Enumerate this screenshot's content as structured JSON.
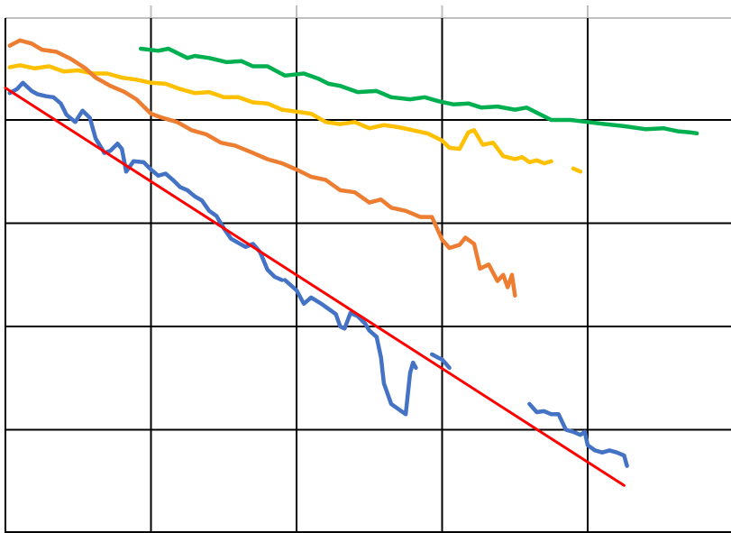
{
  "chart_data": {
    "type": "line",
    "title": "",
    "xlabel": "",
    "ylabel": "",
    "xlim": [
      0,
      5
    ],
    "ylim": [
      0,
      5
    ],
    "grid": true,
    "legend": "none",
    "series": [
      {
        "color": "#00B050",
        "points": [
          [
            0.93,
            4.69
          ],
          [
            1.05,
            4.67
          ],
          [
            1.12,
            4.69
          ],
          [
            1.25,
            4.6
          ],
          [
            1.3,
            4.62
          ],
          [
            1.4,
            4.6
          ],
          [
            1.52,
            4.56
          ],
          [
            1.62,
            4.57
          ],
          [
            1.7,
            4.52
          ],
          [
            1.8,
            4.52
          ],
          [
            1.92,
            4.43
          ],
          [
            2.05,
            4.45
          ],
          [
            2.15,
            4.4
          ],
          [
            2.22,
            4.35
          ],
          [
            2.3,
            4.33
          ],
          [
            2.42,
            4.27
          ],
          [
            2.55,
            4.28
          ],
          [
            2.65,
            4.22
          ],
          [
            2.78,
            4.2
          ],
          [
            2.88,
            4.22
          ],
          [
            2.98,
            4.18
          ],
          [
            3.08,
            4.15
          ],
          [
            3.18,
            4.16
          ],
          [
            3.27,
            4.12
          ],
          [
            3.38,
            4.13
          ],
          [
            3.5,
            4.1
          ],
          [
            3.58,
            4.12
          ],
          [
            3.75,
            4.0
          ],
          [
            3.88,
            4.0
          ],
          [
            4.0,
            3.98
          ],
          [
            4.12,
            3.96
          ],
          [
            4.25,
            3.94
          ],
          [
            4.4,
            3.91
          ],
          [
            4.52,
            3.92
          ],
          [
            4.62,
            3.89
          ],
          [
            4.7,
            3.88
          ],
          [
            4.75,
            3.87
          ]
        ]
      },
      {
        "color": "#FFC000",
        "points": [
          [
            0.03,
            4.51
          ],
          [
            0.1,
            4.53
          ],
          [
            0.2,
            4.5
          ],
          [
            0.3,
            4.52
          ],
          [
            0.4,
            4.47
          ],
          [
            0.5,
            4.48
          ],
          [
            0.6,
            4.45
          ],
          [
            0.7,
            4.45
          ],
          [
            0.8,
            4.41
          ],
          [
            0.9,
            4.39
          ],
          [
            1.0,
            4.36
          ],
          [
            1.1,
            4.35
          ],
          [
            1.2,
            4.3
          ],
          [
            1.3,
            4.26
          ],
          [
            1.4,
            4.27
          ],
          [
            1.5,
            4.22
          ],
          [
            1.6,
            4.22
          ],
          [
            1.7,
            4.17
          ],
          [
            1.8,
            4.16
          ],
          [
            1.9,
            4.1
          ],
          [
            2.0,
            4.08
          ],
          [
            2.1,
            4.06
          ],
          [
            2.2,
            3.98
          ],
          [
            2.3,
            3.96
          ],
          [
            2.4,
            3.98
          ],
          [
            2.5,
            3.92
          ],
          [
            2.6,
            3.95
          ],
          [
            2.7,
            3.93
          ],
          [
            2.8,
            3.9
          ],
          [
            2.9,
            3.87
          ],
          [
            3.0,
            3.8
          ],
          [
            3.05,
            3.73
          ],
          [
            3.12,
            3.72
          ],
          [
            3.18,
            3.88
          ],
          [
            3.22,
            3.9
          ],
          [
            3.28,
            3.76
          ],
          [
            3.35,
            3.78
          ],
          [
            3.42,
            3.65
          ],
          [
            3.5,
            3.62
          ],
          [
            3.55,
            3.64
          ],
          [
            3.6,
            3.59
          ],
          [
            3.65,
            3.61
          ],
          [
            3.7,
            3.58
          ],
          [
            3.75,
            3.6
          ]
        ]
      },
      {
        "color": "#FFC000",
        "points": [
          [
            3.9,
            3.53
          ],
          [
            3.95,
            3.5
          ]
        ]
      },
      {
        "color": "#ED7D31",
        "points": [
          [
            0.03,
            4.72
          ],
          [
            0.1,
            4.77
          ],
          [
            0.18,
            4.74
          ],
          [
            0.25,
            4.68
          ],
          [
            0.35,
            4.66
          ],
          [
            0.45,
            4.59
          ],
          [
            0.55,
            4.5
          ],
          [
            0.62,
            4.41
          ],
          [
            0.72,
            4.33
          ],
          [
            0.82,
            4.27
          ],
          [
            0.9,
            4.2
          ],
          [
            1.0,
            4.06
          ],
          [
            1.08,
            4.02
          ],
          [
            1.18,
            3.98
          ],
          [
            1.28,
            3.9
          ],
          [
            1.38,
            3.86
          ],
          [
            1.48,
            3.78
          ],
          [
            1.58,
            3.75
          ],
          [
            1.7,
            3.68
          ],
          [
            1.8,
            3.62
          ],
          [
            1.9,
            3.58
          ],
          [
            2.0,
            3.52
          ],
          [
            2.1,
            3.45
          ],
          [
            2.2,
            3.42
          ],
          [
            2.3,
            3.32
          ],
          [
            2.4,
            3.3
          ],
          [
            2.5,
            3.2
          ],
          [
            2.58,
            3.23
          ],
          [
            2.65,
            3.15
          ],
          [
            2.75,
            3.12
          ],
          [
            2.85,
            3.06
          ],
          [
            2.93,
            3.06
          ],
          [
            3.0,
            2.84
          ],
          [
            3.05,
            2.76
          ],
          [
            3.12,
            2.79
          ],
          [
            3.16,
            2.86
          ],
          [
            3.22,
            2.8
          ],
          [
            3.26,
            2.56
          ],
          [
            3.32,
            2.6
          ],
          [
            3.38,
            2.44
          ],
          [
            3.42,
            2.5
          ],
          [
            3.45,
            2.38
          ],
          [
            3.48,
            2.5
          ],
          [
            3.5,
            2.3
          ]
        ]
      },
      {
        "color": "#4472C4",
        "points": [
          [
            0.03,
            4.26
          ],
          [
            0.08,
            4.3
          ],
          [
            0.12,
            4.36
          ],
          [
            0.18,
            4.28
          ],
          [
            0.22,
            4.25
          ],
          [
            0.28,
            4.23
          ],
          [
            0.33,
            4.22
          ],
          [
            0.38,
            4.16
          ],
          [
            0.42,
            4.05
          ],
          [
            0.48,
            3.98
          ],
          [
            0.53,
            4.09
          ],
          [
            0.58,
            4.02
          ],
          [
            0.62,
            3.82
          ],
          [
            0.68,
            3.68
          ],
          [
            0.72,
            3.7
          ],
          [
            0.77,
            3.77
          ],
          [
            0.8,
            3.72
          ],
          [
            0.83,
            3.5
          ],
          [
            0.88,
            3.6
          ],
          [
            0.95,
            3.59
          ],
          [
            1.0,
            3.52
          ],
          [
            1.05,
            3.46
          ],
          [
            1.1,
            3.48
          ],
          [
            1.15,
            3.42
          ],
          [
            1.2,
            3.35
          ],
          [
            1.25,
            3.32
          ],
          [
            1.3,
            3.26
          ],
          [
            1.35,
            3.22
          ],
          [
            1.4,
            3.12
          ],
          [
            1.45,
            3.07
          ],
          [
            1.5,
            2.95
          ],
          [
            1.55,
            2.85
          ],
          [
            1.6,
            2.81
          ],
          [
            1.65,
            2.77
          ],
          [
            1.7,
            2.8
          ],
          [
            1.75,
            2.72
          ],
          [
            1.8,
            2.55
          ],
          [
            1.85,
            2.48
          ],
          [
            1.9,
            2.45
          ]
        ]
      },
      {
        "color": "#4472C4",
        "points": [
          [
            1.92,
            2.45
          ],
          [
            2.0,
            2.35
          ],
          [
            2.05,
            2.22
          ],
          [
            2.1,
            2.28
          ],
          [
            2.17,
            2.22
          ],
          [
            2.22,
            2.17
          ],
          [
            2.27,
            2.12
          ],
          [
            2.3,
            2.0
          ],
          [
            2.33,
            1.98
          ],
          [
            2.37,
            2.13
          ],
          [
            2.42,
            2.1
          ],
          [
            2.47,
            2.03
          ],
          [
            2.5,
            1.96
          ],
          [
            2.55,
            1.9
          ],
          [
            2.58,
            1.7
          ],
          [
            2.6,
            1.45
          ],
          [
            2.65,
            1.25
          ],
          [
            2.72,
            1.18
          ],
          [
            2.75,
            1.15
          ],
          [
            2.78,
            1.55
          ],
          [
            2.8,
            1.65
          ],
          [
            2.82,
            1.6
          ]
        ]
      },
      {
        "color": "#4472C4",
        "points": [
          [
            2.93,
            1.73
          ],
          [
            2.97,
            1.7
          ],
          [
            3.0,
            1.68
          ],
          [
            3.05,
            1.6
          ]
        ]
      },
      {
        "color": "#4472C4",
        "points": [
          [
            3.6,
            1.25
          ],
          [
            3.65,
            1.17
          ],
          [
            3.7,
            1.18
          ],
          [
            3.75,
            1.15
          ],
          [
            3.8,
            1.15
          ],
          [
            3.85,
            1.0
          ],
          [
            3.9,
            0.98
          ],
          [
            3.95,
            0.95
          ],
          [
            3.98,
            0.98
          ],
          [
            4.0,
            0.85
          ],
          [
            4.05,
            0.8
          ],
          [
            4.1,
            0.78
          ],
          [
            4.15,
            0.8
          ],
          [
            4.2,
            0.78
          ],
          [
            4.25,
            0.75
          ],
          [
            4.27,
            0.65
          ]
        ]
      },
      {
        "color": "#FF0000",
        "points": [
          [
            0.0,
            4.31
          ],
          [
            4.25,
            0.46
          ]
        ]
      }
    ]
  }
}
